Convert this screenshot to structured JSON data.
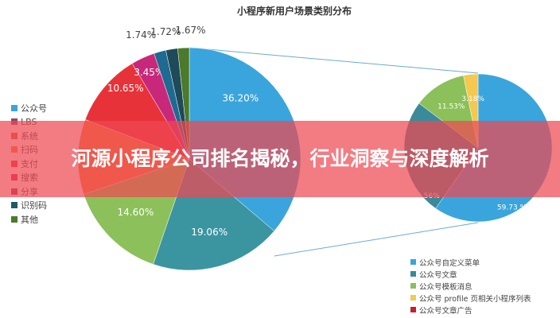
{
  "chart_data": [
    {
      "type": "pie",
      "title": "小程序新用户场景类别分布",
      "legend": [
        {
          "name": "公众号",
          "color": "#3aa5dc"
        },
        {
          "name": "LBS",
          "color": "#8c4a6a"
        },
        {
          "name": "系统",
          "color": "#d9623a"
        },
        {
          "name": "扫码",
          "color": "#f5803e"
        },
        {
          "name": "支付",
          "color": "#e8323a"
        },
        {
          "name": "搜索",
          "color": "#d8284a"
        },
        {
          "name": "分享",
          "color": "#a8345a"
        },
        {
          "name": "识别码",
          "color": "#1e5a6a"
        },
        {
          "name": "其他",
          "color": "#4a7a2a"
        }
      ],
      "slices": [
        {
          "value": 36.2,
          "label": "36.20%",
          "color": "#3aa5dc"
        },
        {
          "value": 19.06,
          "label": "19.06%",
          "color": "#3a95a0"
        },
        {
          "value": 14.6,
          "label": "14.60%",
          "color": "#8cc05a"
        },
        {
          "value": 10.91,
          "label": "10.91%",
          "color": "#f5803e"
        },
        {
          "value": 10.65,
          "label": "10.65%",
          "color": "#e8323a"
        },
        {
          "value": 3.45,
          "label": "3.45%",
          "color": "#c8287a"
        },
        {
          "value": 1.74,
          "label": "1.74%",
          "color": "#1e6a90"
        },
        {
          "value": 1.72,
          "label": "1.72%",
          "color": "#1e4a5a"
        },
        {
          "value": 1.67,
          "label": "1.67%",
          "color": "#4a7a2a"
        }
      ]
    },
    {
      "type": "pie",
      "legend": [
        {
          "name": "公众号自定义菜单",
          "color": "#3aa5dc"
        },
        {
          "name": "公众号文章",
          "color": "#3a8a9a"
        },
        {
          "name": "公众号模板消息",
          "color": "#8cc05a"
        },
        {
          "name": "公众号 profile 页相关小程序列表",
          "color": "#f5c850"
        },
        {
          "name": "公众号文章广告",
          "color": "#c8202a"
        }
      ],
      "slices": [
        {
          "value": 59.73,
          "label": "59.73 %",
          "color": "#3aa5dc"
        },
        {
          "value": 25.56,
          "label": "25.56%",
          "color": "#3a8a9a"
        },
        {
          "value": 11.53,
          "label": "11.53%",
          "color": "#8cc05a"
        },
        {
          "value": 3.18,
          "label": "3.18%",
          "color": "#f5c850"
        }
      ]
    }
  ],
  "banner": {
    "text": "河源小程序公司排名揭秘，行业洞察与深度解析"
  }
}
